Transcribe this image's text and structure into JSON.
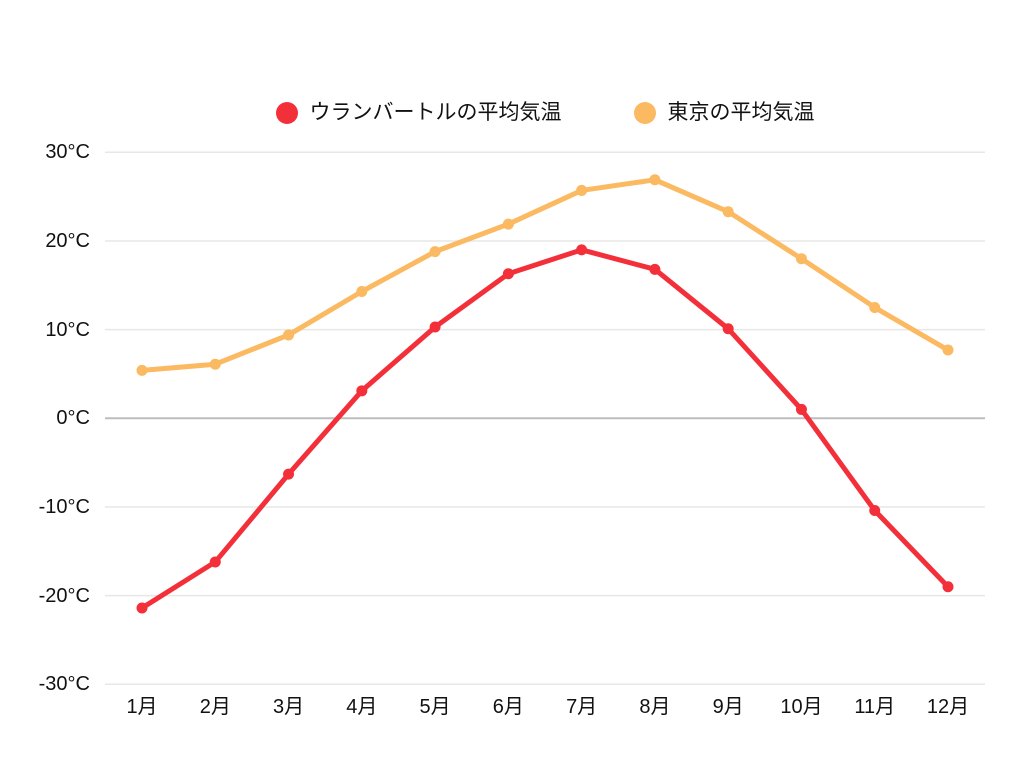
{
  "page": {
    "background_color": "#ffffff",
    "text_color": "#111111"
  },
  "chart_data": {
    "type": "line",
    "title": "",
    "categories": [
      "1月",
      "2月",
      "3月",
      "4月",
      "5月",
      "6月",
      "7月",
      "8月",
      "9月",
      "10月",
      "11月",
      "12月"
    ],
    "series": [
      {
        "name": "ウランバートルの平均気温",
        "color": "#F3303A",
        "values": [
          -21.4,
          -16.2,
          -6.3,
          3.1,
          10.3,
          16.3,
          19.0,
          16.8,
          10.1,
          1.0,
          -10.4,
          -19.0
        ]
      },
      {
        "name": "東京の平均気温",
        "color": "#FBB961",
        "values": [
          5.4,
          6.1,
          9.4,
          14.3,
          18.8,
          21.9,
          25.7,
          26.9,
          23.3,
          18.0,
          12.5,
          7.7
        ]
      }
    ],
    "ylim": [
      -30,
      30
    ],
    "yticks": [
      {
        "value": 30,
        "label": "30°C"
      },
      {
        "value": 20,
        "label": "20°C"
      },
      {
        "value": 10,
        "label": "10°C"
      },
      {
        "value": 0,
        "label": "0°C"
      },
      {
        "value": -10,
        "label": "-10°C"
      },
      {
        "value": -20,
        "label": "-20°C"
      },
      {
        "value": -30,
        "label": "-30°C"
      }
    ],
    "grid": true,
    "grid_color": "#E7E7E7",
    "zero_line_color": "#BDBDBD",
    "legend_position": "top"
  }
}
